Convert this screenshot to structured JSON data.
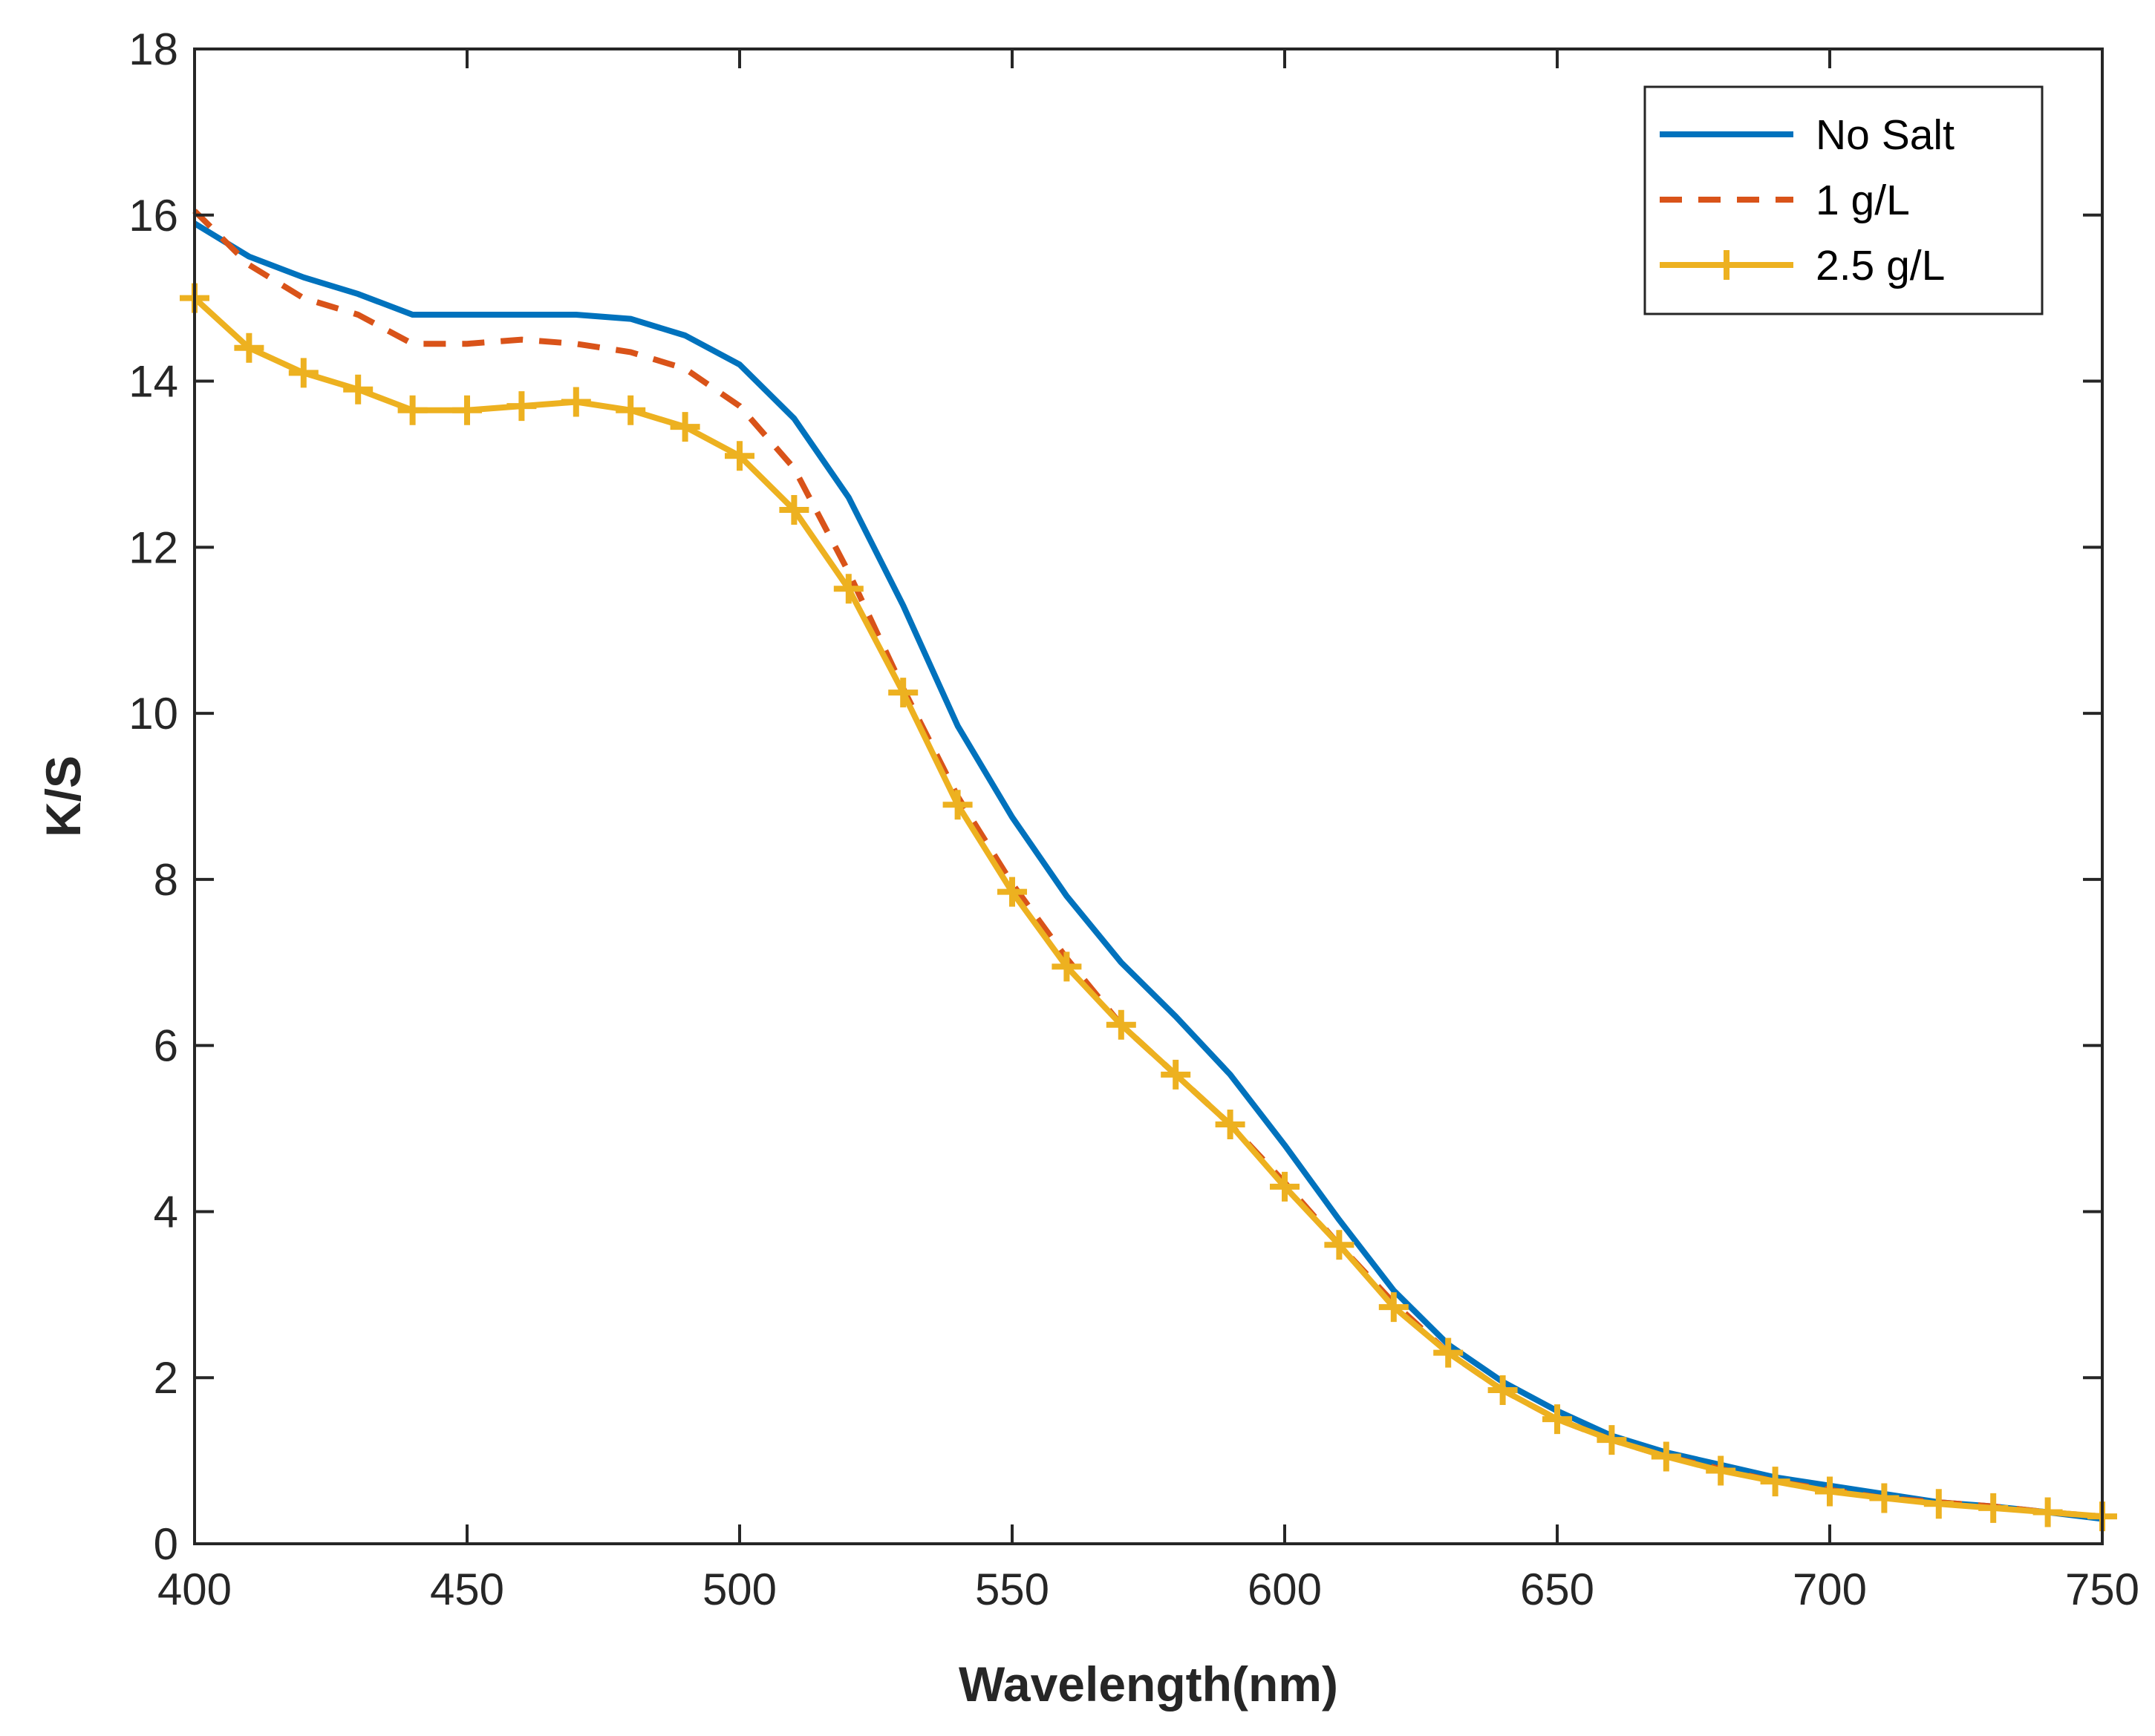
{
  "chart_data": {
    "type": "line",
    "title": "",
    "xlabel": "Wavelength(nm)",
    "ylabel": "K/S",
    "xlim": [
      400,
      750
    ],
    "ylim": [
      0,
      18
    ],
    "xticks": [
      400,
      450,
      500,
      550,
      600,
      650,
      700,
      750
    ],
    "yticks": [
      0,
      2,
      4,
      6,
      8,
      10,
      12,
      14,
      16,
      18
    ],
    "grid": false,
    "legend_position": "top-right",
    "x": [
      400,
      410,
      420,
      430,
      440,
      450,
      460,
      470,
      480,
      490,
      500,
      510,
      520,
      530,
      540,
      550,
      560,
      570,
      580,
      590,
      600,
      610,
      620,
      630,
      640,
      650,
      660,
      670,
      680,
      690,
      700,
      710,
      720,
      730,
      740,
      750
    ],
    "series": [
      {
        "name": "No Salt",
        "color": "#0072BD",
        "style": "solid",
        "marker": "none",
        "values": [
          15.9,
          15.5,
          15.25,
          15.05,
          14.8,
          14.8,
          14.8,
          14.8,
          14.75,
          14.55,
          14.2,
          13.55,
          12.6,
          11.3,
          9.85,
          8.75,
          7.8,
          7.0,
          6.35,
          5.65,
          4.8,
          3.9,
          3.05,
          2.4,
          1.95,
          1.6,
          1.3,
          1.1,
          0.95,
          0.8,
          0.7,
          0.6,
          0.5,
          0.45,
          0.38,
          0.3
        ]
      },
      {
        "name": "1 g/L",
        "color": "#D95319",
        "style": "dashed",
        "marker": "none",
        "values": [
          16.05,
          15.4,
          15.0,
          14.8,
          14.45,
          14.45,
          14.5,
          14.45,
          14.35,
          14.15,
          13.7,
          12.95,
          11.7,
          10.3,
          9.0,
          7.95,
          7.05,
          6.25,
          5.65,
          5.05,
          4.35,
          3.6,
          2.9,
          2.3,
          1.85,
          1.5,
          1.25,
          1.05,
          0.9,
          0.75,
          0.65,
          0.55,
          0.5,
          0.45,
          0.38,
          0.33
        ]
      },
      {
        "name": "2.5 g/L",
        "color": "#EDB120",
        "style": "solid",
        "marker": "plus",
        "values": [
          15.0,
          14.4,
          14.1,
          13.9,
          13.65,
          13.65,
          13.7,
          13.75,
          13.65,
          13.45,
          13.1,
          12.45,
          11.5,
          10.25,
          8.9,
          7.85,
          6.95,
          6.25,
          5.65,
          5.05,
          4.3,
          3.6,
          2.85,
          2.3,
          1.85,
          1.5,
          1.25,
          1.05,
          0.88,
          0.75,
          0.63,
          0.55,
          0.48,
          0.43,
          0.38,
          0.33
        ]
      }
    ]
  }
}
